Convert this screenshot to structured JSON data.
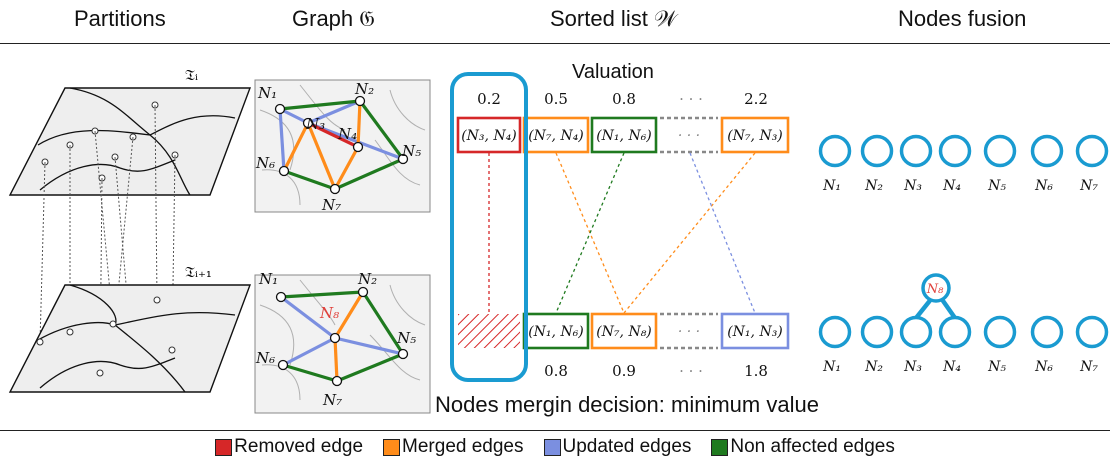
{
  "headers": {
    "partitions": "Partitions",
    "graph": "Graph 𝔊",
    "sorted_list": "Sorted list 𝒲",
    "nodes_fusion": "Nodes fusion"
  },
  "partition_labels": {
    "top": "𝔗ᵢ",
    "bottom": "𝔗ᵢ₊₁"
  },
  "sorted_list": {
    "valuation_label": "Valuation",
    "top_values": [
      "0.2",
      "0.5",
      "0.8",
      "· · ·",
      "2.2"
    ],
    "top_pairs": [
      "(N₃, N₄)",
      "(N₇, N₄)",
      "(N₁, N₆)",
      "· · ·",
      "(N₇, N₃)"
    ],
    "bottom_pairs": [
      "",
      "(N₁, N₆)",
      "(N₇, N₈)",
      "· · ·",
      "(N₁, N₃)"
    ],
    "bottom_values": [
      "",
      "0.8",
      "0.9",
      "· · ·",
      "1.8"
    ],
    "decision": "Nodes mergin decision: minimum value"
  },
  "graph_top_nodes": [
    "N₁",
    "N₂",
    "N₃",
    "N₄",
    "N₅",
    "N₆",
    "N₇"
  ],
  "graph_bottom_nodes": [
    "N₁",
    "N₂",
    "N₈",
    "N₅",
    "N₆",
    "N₇"
  ],
  "fusion_top_nodes": [
    "N₁",
    "N₂",
    "N₃",
    "N₄",
    "N₅",
    "N₆",
    "N₇"
  ],
  "fusion_bottom_nodes": [
    "N₁",
    "N₂",
    "N₃",
    "N₄",
    "N₅",
    "N₆",
    "N₇"
  ],
  "fusion_merged_node": "N₈",
  "legend": [
    {
      "label": "Removed edge",
      "color": "#d62728"
    },
    {
      "label": "Merged edges",
      "color": "#ff8c1a"
    },
    {
      "label": "Updated edges",
      "color": "#7b8fe0"
    },
    {
      "label": "Non affected edges",
      "color": "#1f7a1f"
    }
  ],
  "colors": {
    "removed": "#d62728",
    "merged": "#ff8c1a",
    "updated": "#7b8fe0",
    "unaffected": "#1f7a1f",
    "highlight": "#1a9bd1",
    "merged_node_label": "#e0403a"
  }
}
